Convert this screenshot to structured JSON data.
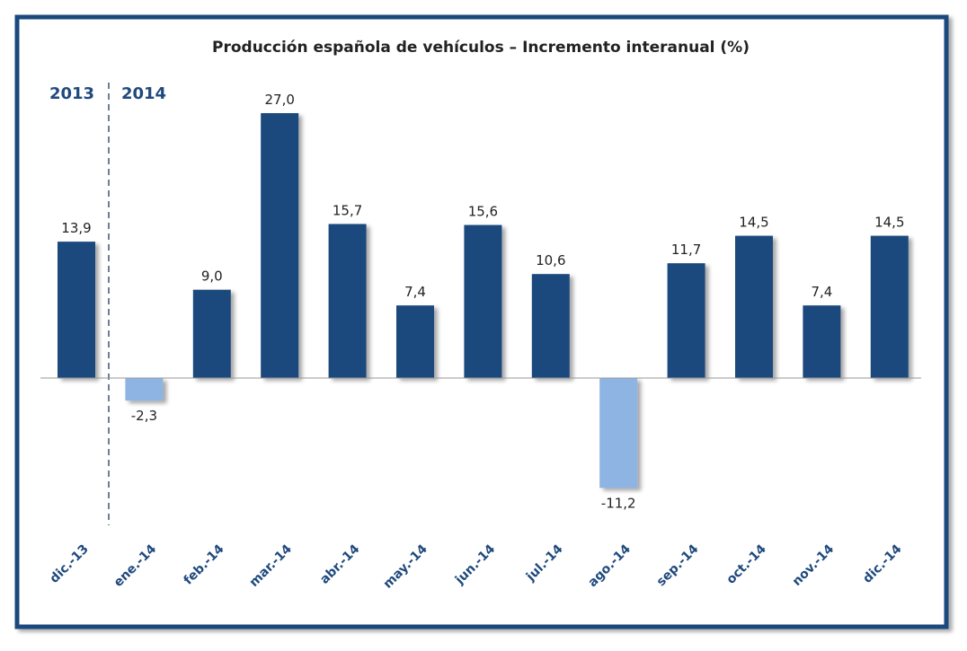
{
  "chart_data": {
    "type": "bar",
    "title": "Producción española de vehículos – Incremento interanual (%)",
    "categories": [
      "dic.-13",
      "ene.-14",
      "feb.-14",
      "mar.-14",
      "abr.-14",
      "may.-14",
      "jun.-14",
      "jul.-14",
      "ago.-14",
      "sep.-14",
      "oct.-14",
      "nov.-14",
      "dic.-14"
    ],
    "values": [
      13.9,
      -2.3,
      9.0,
      27.0,
      15.7,
      7.4,
      15.6,
      10.6,
      -11.2,
      11.7,
      14.5,
      7.4,
      14.5
    ],
    "data_labels": [
      "13,9",
      "-2,3",
      "9,0",
      "27,0",
      "15,7",
      "7,4",
      "15,6",
      "10,6",
      "-11,2",
      "11,7",
      "14,5",
      "7,4",
      "14,5"
    ],
    "annotations": {
      "year_left": "2013",
      "year_right": "2014"
    },
    "colors": {
      "positive": "#1F497D",
      "negative": "#8DB4E2",
      "frame": "#1F497D",
      "text": "#1F497D"
    },
    "ylim": [
      -11.2,
      27.0
    ],
    "grid": false,
    "legend": "none"
  }
}
